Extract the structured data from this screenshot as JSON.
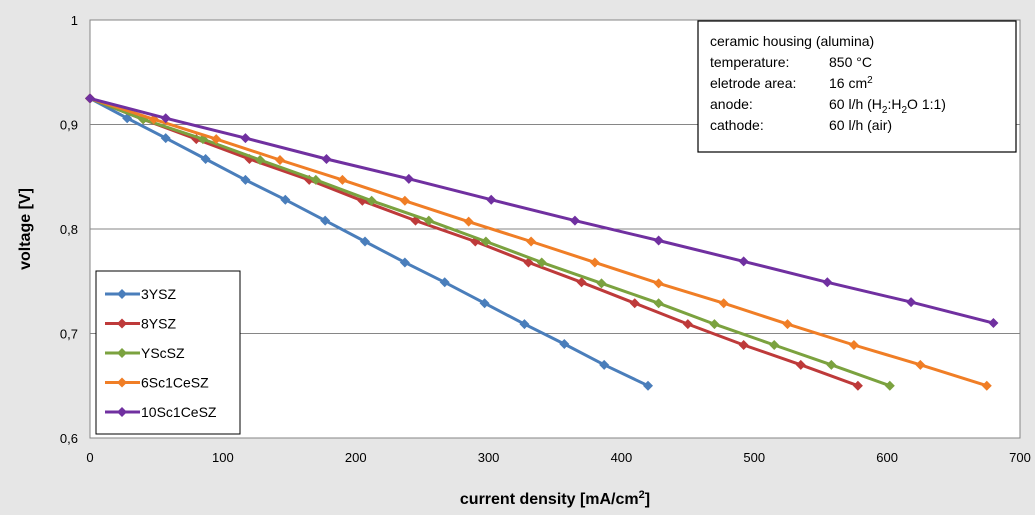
{
  "chart_data": {
    "type": "line",
    "xlabel": "current density [mA/cm",
    "xlabel_sup": "2",
    "xlabel_end": "]",
    "ylabel": "voltage [V]",
    "xlim": [
      0,
      700
    ],
    "ylim": [
      0.6,
      1.0
    ],
    "x_ticks": [
      "0",
      "100",
      "200",
      "300",
      "400",
      "500",
      "600",
      "700"
    ],
    "y_ticks": [
      "0,6",
      "0,7",
      "0,8",
      "0,9",
      "1"
    ],
    "grid": "horizontal",
    "legend_position": "bottom-left",
    "series": [
      {
        "name": "3YSZ",
        "color": "#4a7ebb",
        "x": [
          0,
          28,
          57,
          87,
          117,
          147,
          177,
          207,
          237,
          267,
          297,
          327,
          357,
          387,
          420
        ],
        "y": [
          0.925,
          0.906,
          0.887,
          0.867,
          0.847,
          0.828,
          0.808,
          0.788,
          0.768,
          0.749,
          0.729,
          0.709,
          0.69,
          0.67,
          0.65
        ]
      },
      {
        "name": "8YSZ",
        "color": "#be3a3a",
        "x": [
          0,
          40,
          80,
          120,
          165,
          205,
          245,
          290,
          330,
          370,
          410,
          450,
          492,
          535,
          578
        ],
        "y": [
          0.925,
          0.905,
          0.886,
          0.867,
          0.847,
          0.827,
          0.808,
          0.788,
          0.768,
          0.749,
          0.729,
          0.709,
          0.689,
          0.67,
          0.65
        ]
      },
      {
        "name": "YScSZ",
        "color": "#7ba23f",
        "x": [
          0,
          40,
          85,
          128,
          170,
          212,
          255,
          298,
          340,
          385,
          428,
          470,
          515,
          558,
          602
        ],
        "y": [
          0.925,
          0.905,
          0.886,
          0.866,
          0.847,
          0.827,
          0.808,
          0.788,
          0.768,
          0.748,
          0.729,
          0.709,
          0.689,
          0.67,
          0.65
        ]
      },
      {
        "name": "6Sc1CeSZ",
        "color": "#f07e26",
        "x": [
          0,
          48,
          95,
          143,
          190,
          237,
          285,
          332,
          380,
          428,
          477,
          525,
          575,
          625,
          675
        ],
        "y": [
          0.925,
          0.905,
          0.886,
          0.866,
          0.847,
          0.827,
          0.807,
          0.788,
          0.768,
          0.748,
          0.729,
          0.709,
          0.689,
          0.67,
          0.65
        ]
      },
      {
        "name": "10Sc1CeSZ",
        "color": "#7030a0",
        "x": [
          0,
          57,
          117,
          178,
          240,
          302,
          365,
          428,
          492,
          555,
          618,
          680
        ],
        "y": [
          0.925,
          0.906,
          0.887,
          0.867,
          0.848,
          0.828,
          0.808,
          0.789,
          0.769,
          0.749,
          0.73,
          0.71
        ]
      }
    ],
    "annotation": {
      "lines": [
        {
          "label": "ceramic housing (alumina)",
          "value": ""
        },
        {
          "label": "temperature:",
          "value": "850 °C"
        },
        {
          "label": "eletrode area:",
          "value": "16 cm",
          "sup": "2"
        },
        {
          "label": "anode:",
          "value": "60 l/h (H",
          "sub1": "2",
          "mid": ":H",
          "sub2": "2",
          "end": "O 1:1)"
        },
        {
          "label": "cathode:",
          "value": "60 l/h (air)"
        }
      ]
    }
  }
}
